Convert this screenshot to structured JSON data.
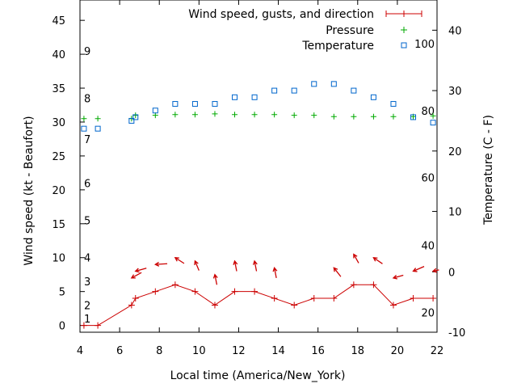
{
  "chart_data": {
    "type": "scatter",
    "title": "",
    "xlabel": "Local time (America/New_York)",
    "ylabel_left": "Wind speed (kt - Beaufort)",
    "ylabel_right": "Temperature (C - F)",
    "xlim": [
      4,
      22
    ],
    "ylim_left": [
      -1,
      48
    ],
    "ylim_right": [
      -10,
      45
    ],
    "x_ticks": [
      "4",
      "6",
      "8",
      "10",
      "12",
      "14",
      "16",
      "18",
      "20",
      "22"
    ],
    "y_left_ticks": [
      "0",
      "5",
      "10",
      "15",
      "20",
      "25",
      "30",
      "35",
      "40",
      "45"
    ],
    "y_right_ticks": [
      "-10",
      "0",
      "10",
      "20",
      "30",
      "40"
    ],
    "beaufort_labels": [
      {
        "label": "1",
        "value": 1.0
      },
      {
        "label": "2",
        "value": 3.0
      },
      {
        "label": "3",
        "value": 6.5
      },
      {
        "label": "4",
        "value": 10.0
      },
      {
        "label": "5",
        "value": 15.5
      },
      {
        "label": "6",
        "value": 21.0
      },
      {
        "label": "7",
        "value": 27.5
      },
      {
        "label": "8",
        "value": 33.5
      },
      {
        "label": "9",
        "value": 40.5
      }
    ],
    "fahrenheit_labels": [
      {
        "label": "20",
        "value": -6.7
      },
      {
        "label": "40",
        "value": 4.4
      },
      {
        "label": "60",
        "value": 15.6
      },
      {
        "label": "80",
        "value": 26.7
      },
      {
        "label": "100",
        "value": 37.8
      }
    ],
    "legend": {
      "placement": "top-right",
      "entries": [
        "Wind speed, gusts, and direction",
        "Pressure",
        "Temperature"
      ]
    },
    "series": [
      {
        "name": "Wind speed, gusts, and direction",
        "color": "#cc0000",
        "x": [
          4.2,
          4.9,
          6.6,
          6.8,
          7.8,
          8.8,
          9.8,
          10.8,
          11.8,
          12.8,
          13.8,
          14.8,
          15.8,
          16.8,
          17.8,
          18.8,
          19.8,
          20.8,
          21.8
        ],
        "y": [
          0,
          0,
          3,
          4,
          5,
          6,
          5,
          3,
          5,
          5,
          4,
          3,
          4,
          4,
          6,
          6,
          3,
          4,
          4
        ],
        "direction_markers": [
          {
            "x": 6.6,
            "y": 7.0,
            "dx": 0.5,
            "dy": 0.8
          },
          {
            "x": 6.8,
            "y": 8.0,
            "dx": 0.55,
            "dy": 0.45
          },
          {
            "x": 7.8,
            "y": 9.0,
            "dx": 0.6,
            "dy": 0.1
          },
          {
            "x": 8.8,
            "y": 10.0,
            "dx": 0.45,
            "dy": -0.85
          },
          {
            "x": 9.8,
            "y": 9.5,
            "dx": 0.2,
            "dy": -1.4
          },
          {
            "x": 10.8,
            "y": 7.5,
            "dx": 0.1,
            "dy": -1.5
          },
          {
            "x": 11.8,
            "y": 9.5,
            "dx": 0.1,
            "dy": -1.5
          },
          {
            "x": 12.8,
            "y": 9.5,
            "dx": 0.1,
            "dy": -1.5
          },
          {
            "x": 13.8,
            "y": 8.5,
            "dx": 0.1,
            "dy": -1.5
          },
          {
            "x": 16.8,
            "y": 8.5,
            "dx": 0.35,
            "dy": -1.3
          },
          {
            "x": 17.8,
            "y": 10.5,
            "dx": 0.25,
            "dy": -1.3
          },
          {
            "x": 18.8,
            "y": 10.0,
            "dx": 0.45,
            "dy": -0.9
          },
          {
            "x": 19.8,
            "y": 7.0,
            "dx": 0.5,
            "dy": 0.4
          },
          {
            "x": 20.8,
            "y": 8.0,
            "dx": 0.55,
            "dy": 0.7
          },
          {
            "x": 21.8,
            "y": 8.0,
            "dx": 0.3,
            "dy": 0.2
          }
        ]
      },
      {
        "name": "Pressure",
        "color": "#00aa00",
        "x": [
          4.2,
          4.9,
          6.6,
          6.8,
          7.8,
          8.8,
          9.8,
          10.8,
          11.8,
          12.8,
          13.8,
          14.8,
          15.8,
          16.8,
          17.8,
          18.8,
          19.8,
          20.8,
          21.8
        ],
        "y": [
          30.5,
          30.5,
          30.5,
          31.0,
          31.0,
          31.1,
          31.1,
          31.2,
          31.1,
          31.1,
          31.1,
          31.0,
          31.0,
          30.8,
          30.8,
          30.8,
          30.8,
          30.8,
          30.9
        ]
      },
      {
        "name": "Temperature",
        "color": "#0066cc",
        "x": [
          4.2,
          4.9,
          6.6,
          6.8,
          7.8,
          8.8,
          9.8,
          10.8,
          11.8,
          12.8,
          13.8,
          14.8,
          15.8,
          16.8,
          17.8,
          18.8,
          19.8,
          20.8,
          21.8
        ],
        "y": [
          23.7,
          23.7,
          25.0,
          25.6,
          26.7,
          27.8,
          27.8,
          27.8,
          28.9,
          28.9,
          30.0,
          30.0,
          31.1,
          31.1,
          30.0,
          28.9,
          27.8,
          25.6,
          24.7
        ]
      }
    ],
    "grid": false
  }
}
